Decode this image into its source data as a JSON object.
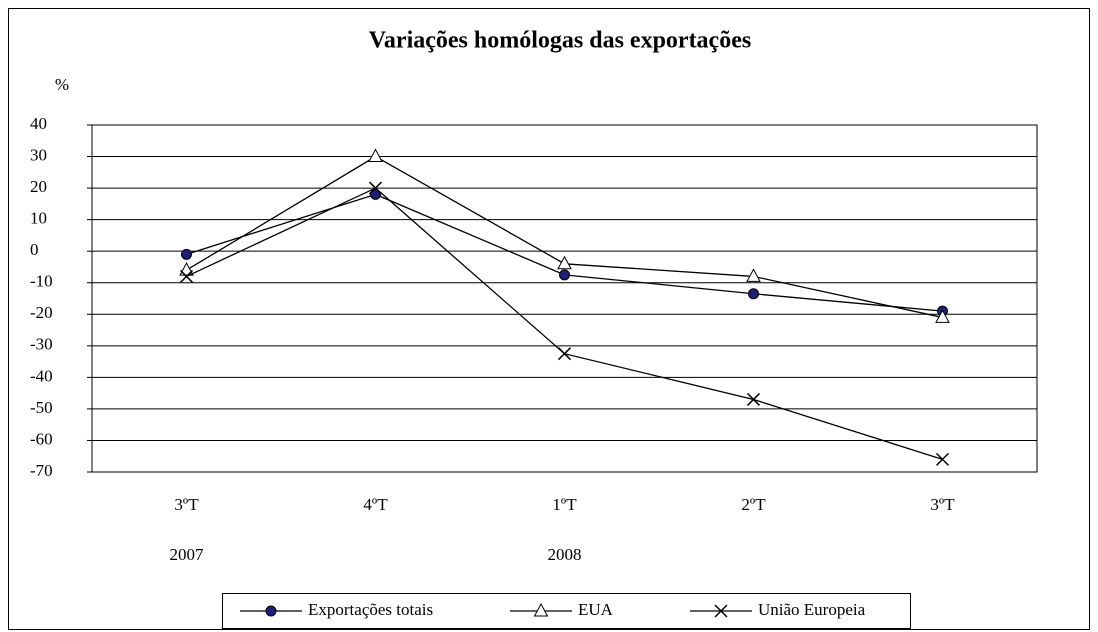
{
  "chart_data": {
    "type": "line",
    "title": "Variações homólogas das exportações",
    "y_label": "%",
    "categories": [
      "3ºT",
      "4ºT",
      "1ºT",
      "2ºT",
      "3ºT"
    ],
    "year_labels": [
      "2007",
      null,
      "2008",
      null,
      null
    ],
    "series": [
      {
        "name": "Exportações totais",
        "color": "#000000",
        "marker": "circle",
        "marker_color": "#1f1f7a",
        "values": [
          -1,
          18,
          -7.5,
          -13.5,
          -19
        ]
      },
      {
        "name": "EUA",
        "color": "#000000",
        "marker": "triangle",
        "marker_color": "#ffffff",
        "values": [
          -6,
          30,
          -4,
          -8,
          -21
        ]
      },
      {
        "name": "União Europeia",
        "color": "#000000",
        "marker": "x",
        "marker_color": "#000000",
        "values": [
          -8,
          20,
          -32.5,
          -47,
          -66
        ]
      }
    ],
    "ylim": [
      -70,
      40
    ],
    "yticks": [
      -70,
      -60,
      -50,
      -40,
      -30,
      -20,
      -10,
      0,
      10,
      20,
      30,
      40
    ],
    "grid": true,
    "legend": "bottom"
  }
}
